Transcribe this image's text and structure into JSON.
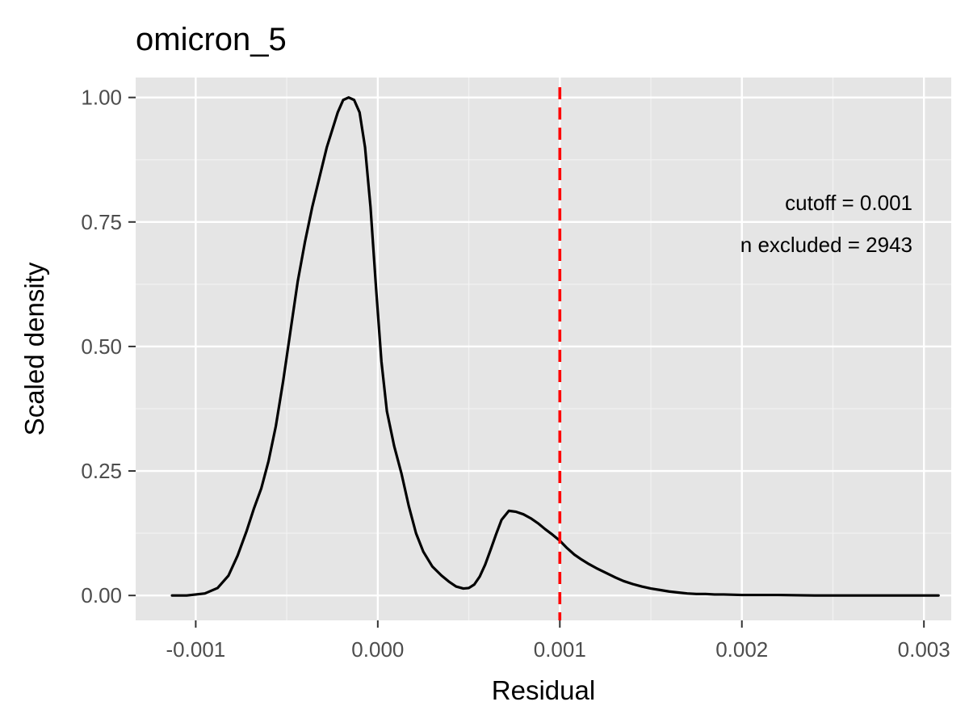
{
  "chart_data": {
    "type": "line",
    "title": "omicron_5",
    "xlabel": "Residual",
    "ylabel": "Scaled density",
    "xlim": [
      -0.00133,
      0.00315
    ],
    "ylim": [
      -0.05,
      1.04
    ],
    "x_ticks": [
      -0.001,
      0.0,
      0.001,
      0.002,
      0.003
    ],
    "x_tick_labels": [
      "-0.001",
      "0.000",
      "0.001",
      "0.002",
      "0.003"
    ],
    "y_ticks": [
      0.0,
      0.25,
      0.5,
      0.75,
      1.0
    ],
    "y_tick_labels": [
      "0.00",
      "0.25",
      "0.50",
      "0.75",
      "1.00"
    ],
    "grid": true,
    "background": "#e5e5e5",
    "series": [
      {
        "color": "#000000",
        "x": [
          -0.00113,
          -0.00105,
          -0.00095,
          -0.00088,
          -0.00082,
          -0.00077,
          -0.00072,
          -0.00068,
          -0.00064,
          -0.0006,
          -0.00056,
          -0.00052,
          -0.00048,
          -0.00044,
          -0.0004,
          -0.00036,
          -0.00032,
          -0.00028,
          -0.00025,
          -0.00022,
          -0.00019,
          -0.00016,
          -0.00013,
          -0.0001,
          -7e-05,
          -4e-05,
          -1e-05,
          2e-05,
          5e-05,
          9e-05,
          0.00013,
          0.00017,
          0.00021,
          0.00025,
          0.0003,
          0.00035,
          0.00039,
          0.00043,
          0.00047,
          0.0005,
          0.00053,
          0.00056,
          0.00059,
          0.00062,
          0.00065,
          0.00068,
          0.00072,
          0.00076,
          0.0008,
          0.00084,
          0.00088,
          0.00092,
          0.00096,
          0.001,
          0.00104,
          0.00108,
          0.00112,
          0.00116,
          0.0012,
          0.00125,
          0.0013,
          0.00135,
          0.0014,
          0.00145,
          0.0015,
          0.00155,
          0.0016,
          0.00165,
          0.0017,
          0.00175,
          0.0018,
          0.00185,
          0.0019,
          0.002,
          0.0021,
          0.0022,
          0.0024,
          0.0026,
          0.0028,
          0.003,
          0.00308
        ],
        "y": [
          0.0,
          0.0,
          0.004,
          0.015,
          0.04,
          0.08,
          0.13,
          0.175,
          0.215,
          0.27,
          0.34,
          0.43,
          0.53,
          0.63,
          0.71,
          0.78,
          0.84,
          0.9,
          0.935,
          0.97,
          0.995,
          1.0,
          0.995,
          0.97,
          0.9,
          0.78,
          0.62,
          0.47,
          0.37,
          0.3,
          0.245,
          0.18,
          0.125,
          0.088,
          0.058,
          0.04,
          0.028,
          0.018,
          0.014,
          0.015,
          0.022,
          0.038,
          0.062,
          0.092,
          0.123,
          0.152,
          0.17,
          0.168,
          0.163,
          0.155,
          0.145,
          0.133,
          0.122,
          0.11,
          0.095,
          0.082,
          0.072,
          0.063,
          0.055,
          0.046,
          0.037,
          0.029,
          0.023,
          0.018,
          0.014,
          0.011,
          0.008,
          0.006,
          0.004,
          0.003,
          0.003,
          0.002,
          0.002,
          0.001,
          0.001,
          0.001,
          0.0,
          0.0,
          0.0,
          0.0,
          0.0
        ]
      }
    ],
    "reference_line": {
      "x": 0.001,
      "color": "#ff0000",
      "style": "dashed"
    },
    "annotations": [
      "cutoff = 0.001",
      "n excluded = 2943"
    ]
  }
}
